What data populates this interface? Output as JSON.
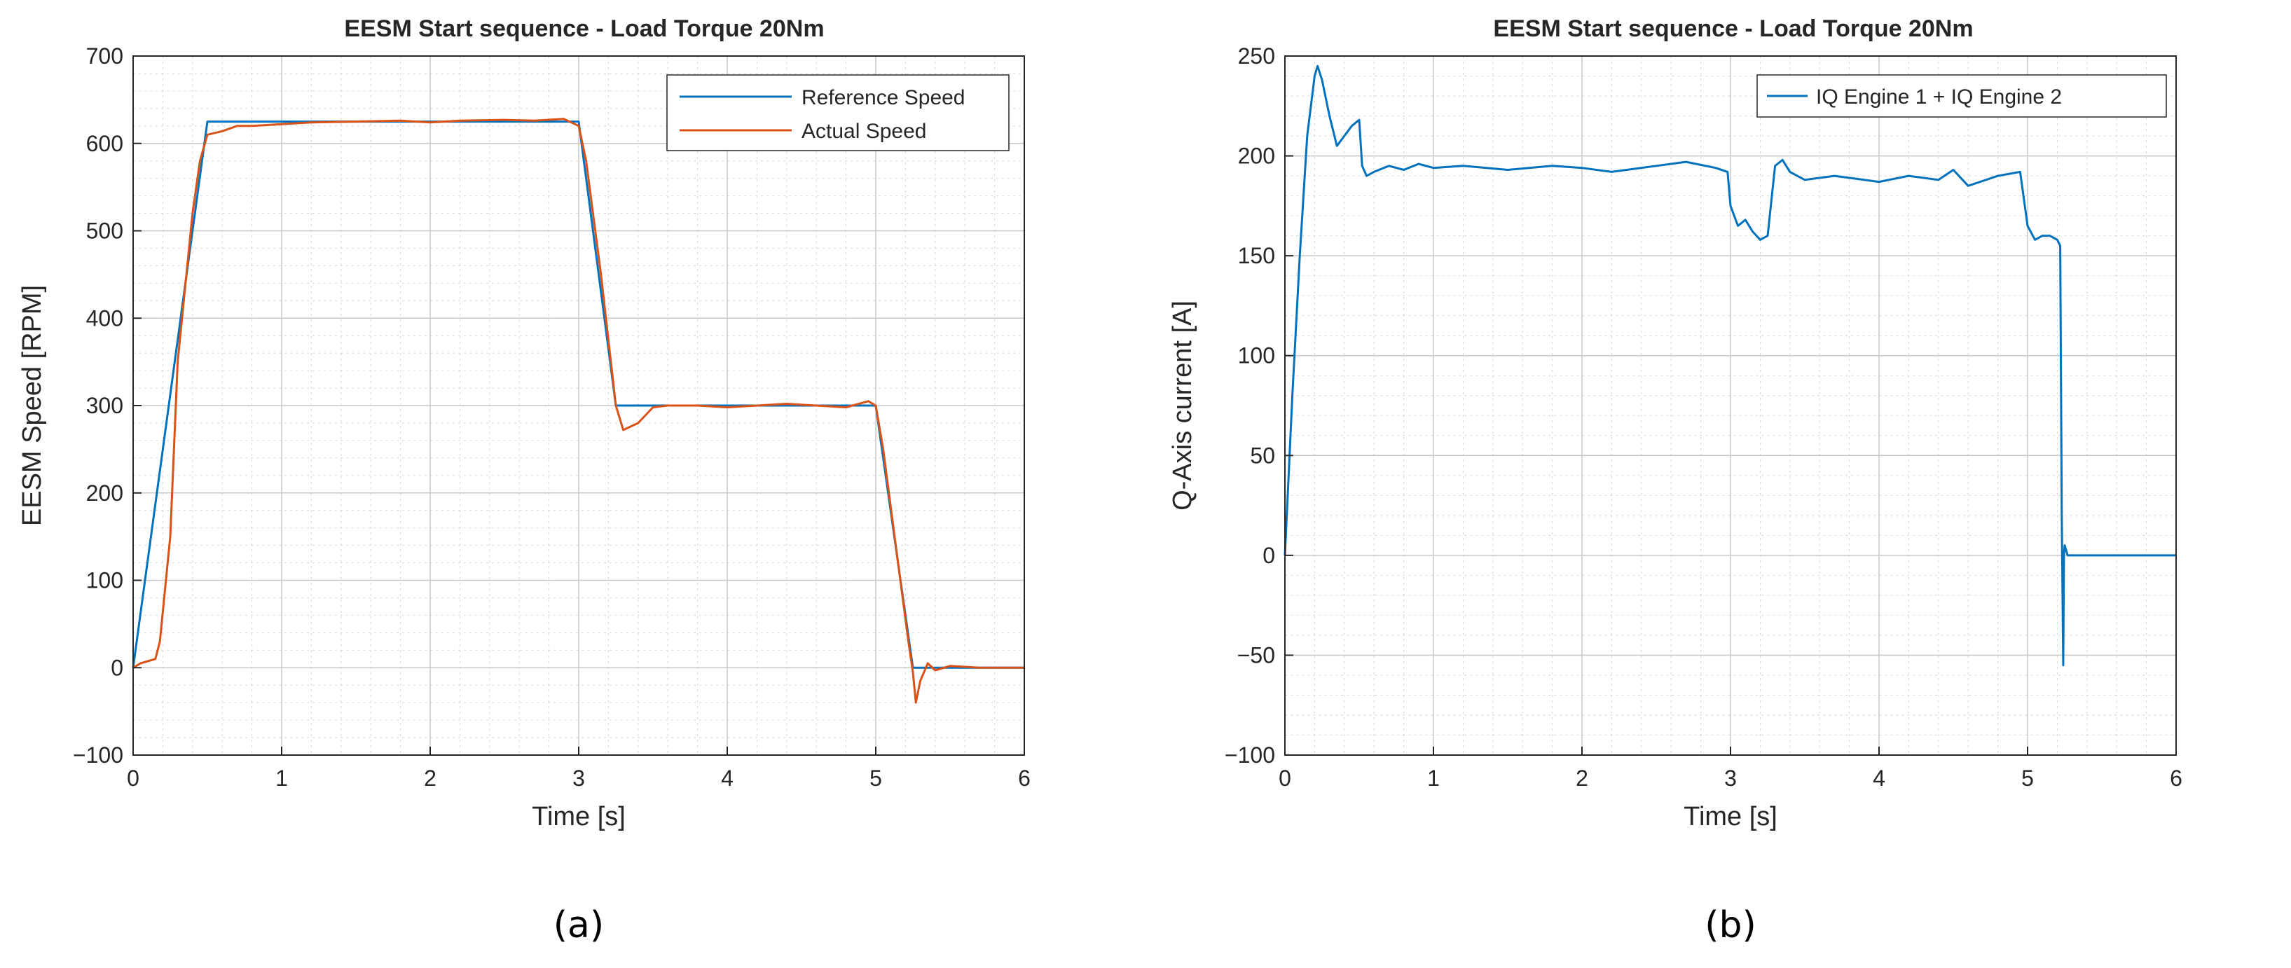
{
  "figure": {
    "captions": [
      "(a)",
      "(b)"
    ]
  },
  "chart_data": [
    {
      "type": "line",
      "title": "EESM Start sequence - Load Torque 20Nm",
      "xlabel": "Time [s]",
      "ylabel": "EESM Speed [RPM]",
      "xlim": [
        0,
        6
      ],
      "ylim": [
        -100,
        700
      ],
      "xticks": [
        0,
        1,
        2,
        3,
        4,
        5,
        6
      ],
      "yticks": [
        -100,
        0,
        100,
        200,
        300,
        400,
        500,
        600,
        700
      ],
      "grid": true,
      "minor_grid": true,
      "legend_position": "top-right",
      "series": [
        {
          "name": "Reference Speed",
          "color": "#0072BD",
          "x": [
            0,
            0.5,
            3.0,
            3.25,
            5.0,
            5.25,
            6.0
          ],
          "y": [
            0,
            625,
            625,
            300,
            300,
            0,
            0
          ]
        },
        {
          "name": "Actual Speed",
          "color": "#D95319",
          "x": [
            0,
            0.05,
            0.15,
            0.18,
            0.25,
            0.3,
            0.4,
            0.45,
            0.5,
            0.55,
            0.6,
            0.7,
            0.8,
            1.0,
            1.2,
            1.5,
            1.8,
            2.0,
            2.2,
            2.5,
            2.7,
            2.9,
            3.0,
            3.05,
            3.15,
            3.25,
            3.3,
            3.4,
            3.5,
            3.6,
            3.8,
            4.0,
            4.2,
            4.4,
            4.6,
            4.8,
            4.95,
            5.0,
            5.05,
            5.15,
            5.22,
            5.25,
            5.27,
            5.3,
            5.35,
            5.4,
            5.5,
            5.7,
            6.0
          ],
          "y": [
            0,
            5,
            10,
            30,
            150,
            350,
            520,
            580,
            610,
            612,
            614,
            620,
            620,
            622,
            624,
            625,
            626,
            624,
            626,
            627,
            626,
            628,
            620,
            580,
            450,
            300,
            272,
            280,
            298,
            300,
            300,
            298,
            300,
            302,
            300,
            298,
            305,
            300,
            250,
            120,
            30,
            -5,
            -40,
            -15,
            5,
            -3,
            2,
            0,
            0
          ]
        }
      ]
    },
    {
      "type": "line",
      "title": "EESM Start sequence - Load Torque 20Nm",
      "xlabel": "Time [s]",
      "ylabel": "Q-Axis current [A]",
      "xlim": [
        0,
        6
      ],
      "ylim": [
        -100,
        250
      ],
      "xticks": [
        0,
        1,
        2,
        3,
        4,
        5,
        6
      ],
      "yticks": [
        -100,
        -50,
        0,
        50,
        100,
        150,
        200,
        250
      ],
      "grid": true,
      "minor_grid": true,
      "legend_position": "top-right",
      "series": [
        {
          "name": "IQ Engine 1 + IQ Engine 2",
          "color": "#0072BD",
          "x": [
            0,
            0.05,
            0.1,
            0.15,
            0.2,
            0.22,
            0.25,
            0.3,
            0.35,
            0.4,
            0.45,
            0.5,
            0.52,
            0.55,
            0.6,
            0.7,
            0.8,
            0.9,
            1.0,
            1.2,
            1.5,
            1.8,
            2.0,
            2.2,
            2.5,
            2.7,
            2.9,
            2.98,
            3.0,
            3.05,
            3.1,
            3.15,
            3.2,
            3.25,
            3.3,
            3.35,
            3.4,
            3.5,
            3.7,
            4.0,
            4.2,
            4.4,
            4.5,
            4.6,
            4.8,
            4.95,
            5.0,
            5.05,
            5.1,
            5.15,
            5.2,
            5.22,
            5.23,
            5.24,
            5.245,
            5.25,
            5.27,
            5.3,
            5.4,
            6.0
          ],
          "y": [
            0,
            80,
            150,
            210,
            240,
            245,
            238,
            220,
            205,
            210,
            215,
            218,
            195,
            190,
            192,
            195,
            193,
            196,
            194,
            195,
            193,
            195,
            194,
            192,
            195,
            197,
            194,
            192,
            175,
            165,
            168,
            162,
            158,
            160,
            195,
            198,
            192,
            188,
            190,
            187,
            190,
            188,
            193,
            185,
            190,
            192,
            165,
            158,
            160,
            160,
            158,
            155,
            20,
            -55,
            0,
            5,
            0,
            0,
            0,
            0
          ]
        }
      ]
    }
  ]
}
